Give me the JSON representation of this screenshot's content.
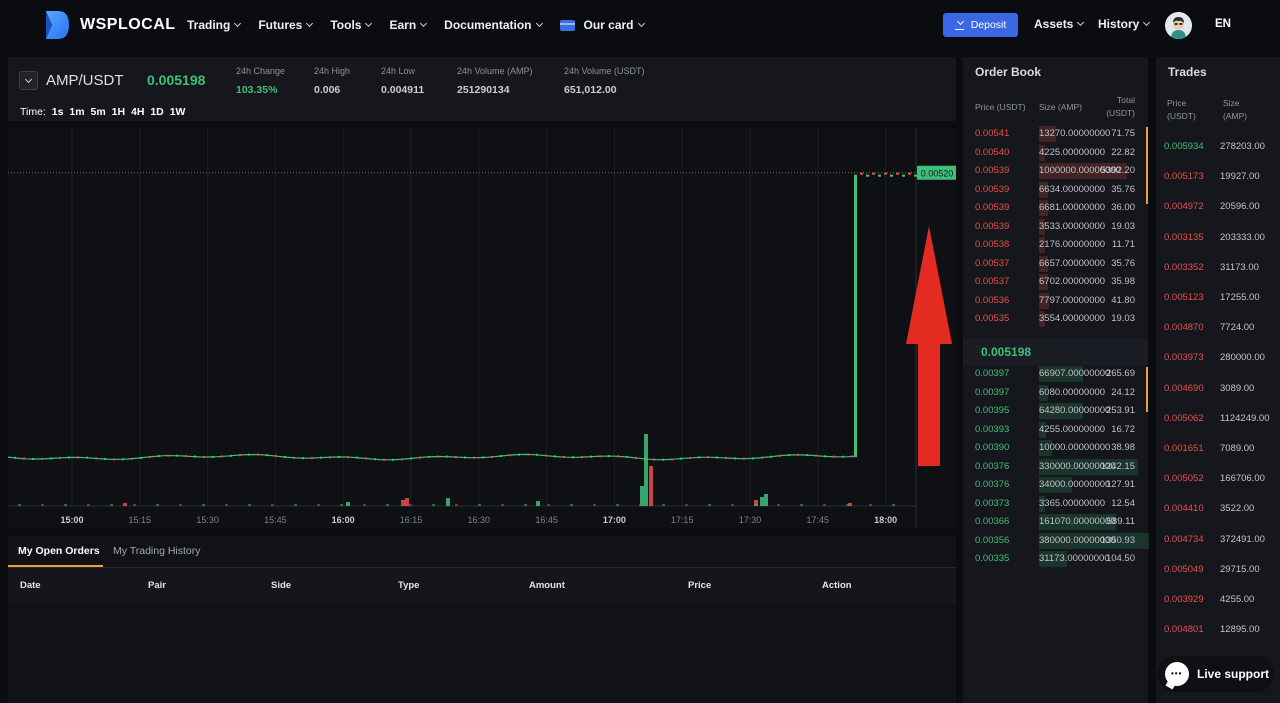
{
  "brand": {
    "name": "WSPLOCAL"
  },
  "nav": [
    {
      "label": "Trading"
    },
    {
      "label": "Futures"
    },
    {
      "label": "Tools"
    },
    {
      "label": "Earn"
    },
    {
      "label": "Documentation"
    },
    {
      "label": "Our card"
    }
  ],
  "header": {
    "deposit": "Deposit",
    "assets": "Assets",
    "history": "History",
    "lang": "EN"
  },
  "pair": {
    "symbol": "AMP/USDT",
    "price": "0.005198",
    "stats": [
      {
        "label": "24h Change",
        "value": "103.35%"
      },
      {
        "label": "24h High",
        "value": "0.006"
      },
      {
        "label": "24h Low",
        "value": "0.004911"
      },
      {
        "label": "24h Volume (AMP)",
        "value": "251290134"
      },
      {
        "label": "24h Volume (USDT)",
        "value": "651,012.00"
      }
    ],
    "time_label": "Time:",
    "timeframes": [
      "1s",
      "1m",
      "5m",
      "1H",
      "4H",
      "1D",
      "1W"
    ]
  },
  "chart_data": {
    "type": "line",
    "x_ticks": [
      "15:00",
      "15:15",
      "15:30",
      "15:45",
      "16:00",
      "16:15",
      "16:30",
      "16:45",
      "17:00",
      "17:15",
      "17:30",
      "17:45",
      "18:00"
    ],
    "bold_ticks": [
      "15:00",
      "16:00",
      "17:00",
      "18:00"
    ],
    "last_price_label": "0.00520",
    "colors": {
      "up": "#3ec07a",
      "down": "#e8504c",
      "annotation_arrow": "#e32b22"
    },
    "annotation": "red upward arrow",
    "series_low": 0.00397,
    "series_high": 0.0052,
    "ylim": [
      0.00375,
      0.00535
    ]
  },
  "orders": {
    "tabs": [
      "My Open Orders",
      "My Trading History"
    ],
    "columns": [
      "Date",
      "Pair",
      "Side",
      "Type",
      "Amount",
      "Price",
      "Action"
    ]
  },
  "orderbook": {
    "title": "Order Book",
    "headers": {
      "price": "Price (USDT)",
      "size": "Size (AMP)",
      "total": "Total (USDT)"
    },
    "asks": [
      {
        "price": "0.00541",
        "size": "13270.00000000",
        "total": "71.75",
        "depth": 0.15
      },
      {
        "price": "0.00540",
        "size": "4225.00000000",
        "total": "22.82",
        "depth": 0.05
      },
      {
        "price": "0.00539",
        "size": "1000000.00000000",
        "total": "5392.20",
        "depth": 0.8
      },
      {
        "price": "0.00539",
        "size": "6634.00000000",
        "total": "35.76",
        "depth": 0.08
      },
      {
        "price": "0.00539",
        "size": "6681.00000000",
        "total": "36.00",
        "depth": 0.08
      },
      {
        "price": "0.00539",
        "size": "3533.00000000",
        "total": "19.03",
        "depth": 0.05
      },
      {
        "price": "0.00538",
        "size": "2176.00000000",
        "total": "11.71",
        "depth": 0.04
      },
      {
        "price": "0.00537",
        "size": "6657.00000000",
        "total": "35.76",
        "depth": 0.08
      },
      {
        "price": "0.00537",
        "size": "6702.00000000",
        "total": "35.98",
        "depth": 0.08
      },
      {
        "price": "0.00536",
        "size": "7797.00000000",
        "total": "41.80",
        "depth": 0.09
      },
      {
        "price": "0.00535",
        "size": "3554.00000000",
        "total": "19.03",
        "depth": 0.05
      }
    ],
    "mid_price": "0.005198",
    "bids": [
      {
        "price": "0.00397",
        "size": "66907.00000000",
        "total": "265.69",
        "depth": 0.4
      },
      {
        "price": "0.00397",
        "size": "6080.00000000",
        "total": "24.12",
        "depth": 0.08
      },
      {
        "price": "0.00395",
        "size": "64280.00000000",
        "total": "253.91",
        "depth": 0.4
      },
      {
        "price": "0.00393",
        "size": "4255.00000000",
        "total": "16.72",
        "depth": 0.06
      },
      {
        "price": "0.00390",
        "size": "10000.00000000",
        "total": "38.98",
        "depth": 0.12
      },
      {
        "price": "0.00376",
        "size": "330000.00000000",
        "total": "1242.15",
        "depth": 0.9
      },
      {
        "price": "0.00376",
        "size": "34000.00000000",
        "total": "127.91",
        "depth": 0.3
      },
      {
        "price": "0.00373",
        "size": "3365.00000000",
        "total": "12.54",
        "depth": 0.05
      },
      {
        "price": "0.00366",
        "size": "161070.00000000",
        "total": "589.11",
        "depth": 0.7
      },
      {
        "price": "0.00356",
        "size": "380000.00000000",
        "total": "1350.93",
        "depth": 1.0
      },
      {
        "price": "0.00335",
        "size": "31173.00000000",
        "total": "104.50",
        "depth": 0.25
      }
    ]
  },
  "trades": {
    "title": "Trades",
    "headers": {
      "price": "Price (USDT)",
      "size": "Size (AMP)"
    },
    "rows": [
      {
        "price": "0.005934",
        "amount": "278203.00",
        "side": "buy"
      },
      {
        "price": "0.005173",
        "amount": "19927.00",
        "side": "sell"
      },
      {
        "price": "0.004972",
        "amount": "20596.00",
        "side": "sell"
      },
      {
        "price": "0.003135",
        "amount": "203333.00",
        "side": "sell"
      },
      {
        "price": "0.003352",
        "amount": "31173.00",
        "side": "sell"
      },
      {
        "price": "0.005123",
        "amount": "17255.00",
        "side": "sell"
      },
      {
        "price": "0.004870",
        "amount": "7724.00",
        "side": "sell"
      },
      {
        "price": "0.003973",
        "amount": "280000.00",
        "side": "sell"
      },
      {
        "price": "0.004690",
        "amount": "3089.00",
        "side": "sell"
      },
      {
        "price": "0.005062",
        "amount": "1124249.00",
        "side": "sell"
      },
      {
        "price": "0.001651",
        "amount": "7089.00",
        "side": "sell"
      },
      {
        "price": "0.005052",
        "amount": "166706.00",
        "side": "sell"
      },
      {
        "price": "0.004410",
        "amount": "3522.00",
        "side": "sell"
      },
      {
        "price": "0.004734",
        "amount": "372491.00",
        "side": "sell"
      },
      {
        "price": "0.005049",
        "amount": "29715.00",
        "side": "sell"
      },
      {
        "price": "0.003929",
        "amount": "4255.00",
        "side": "sell"
      },
      {
        "price": "0.004801",
        "amount": "12895.00",
        "side": "sell"
      }
    ]
  },
  "support": {
    "label": "Live support"
  }
}
